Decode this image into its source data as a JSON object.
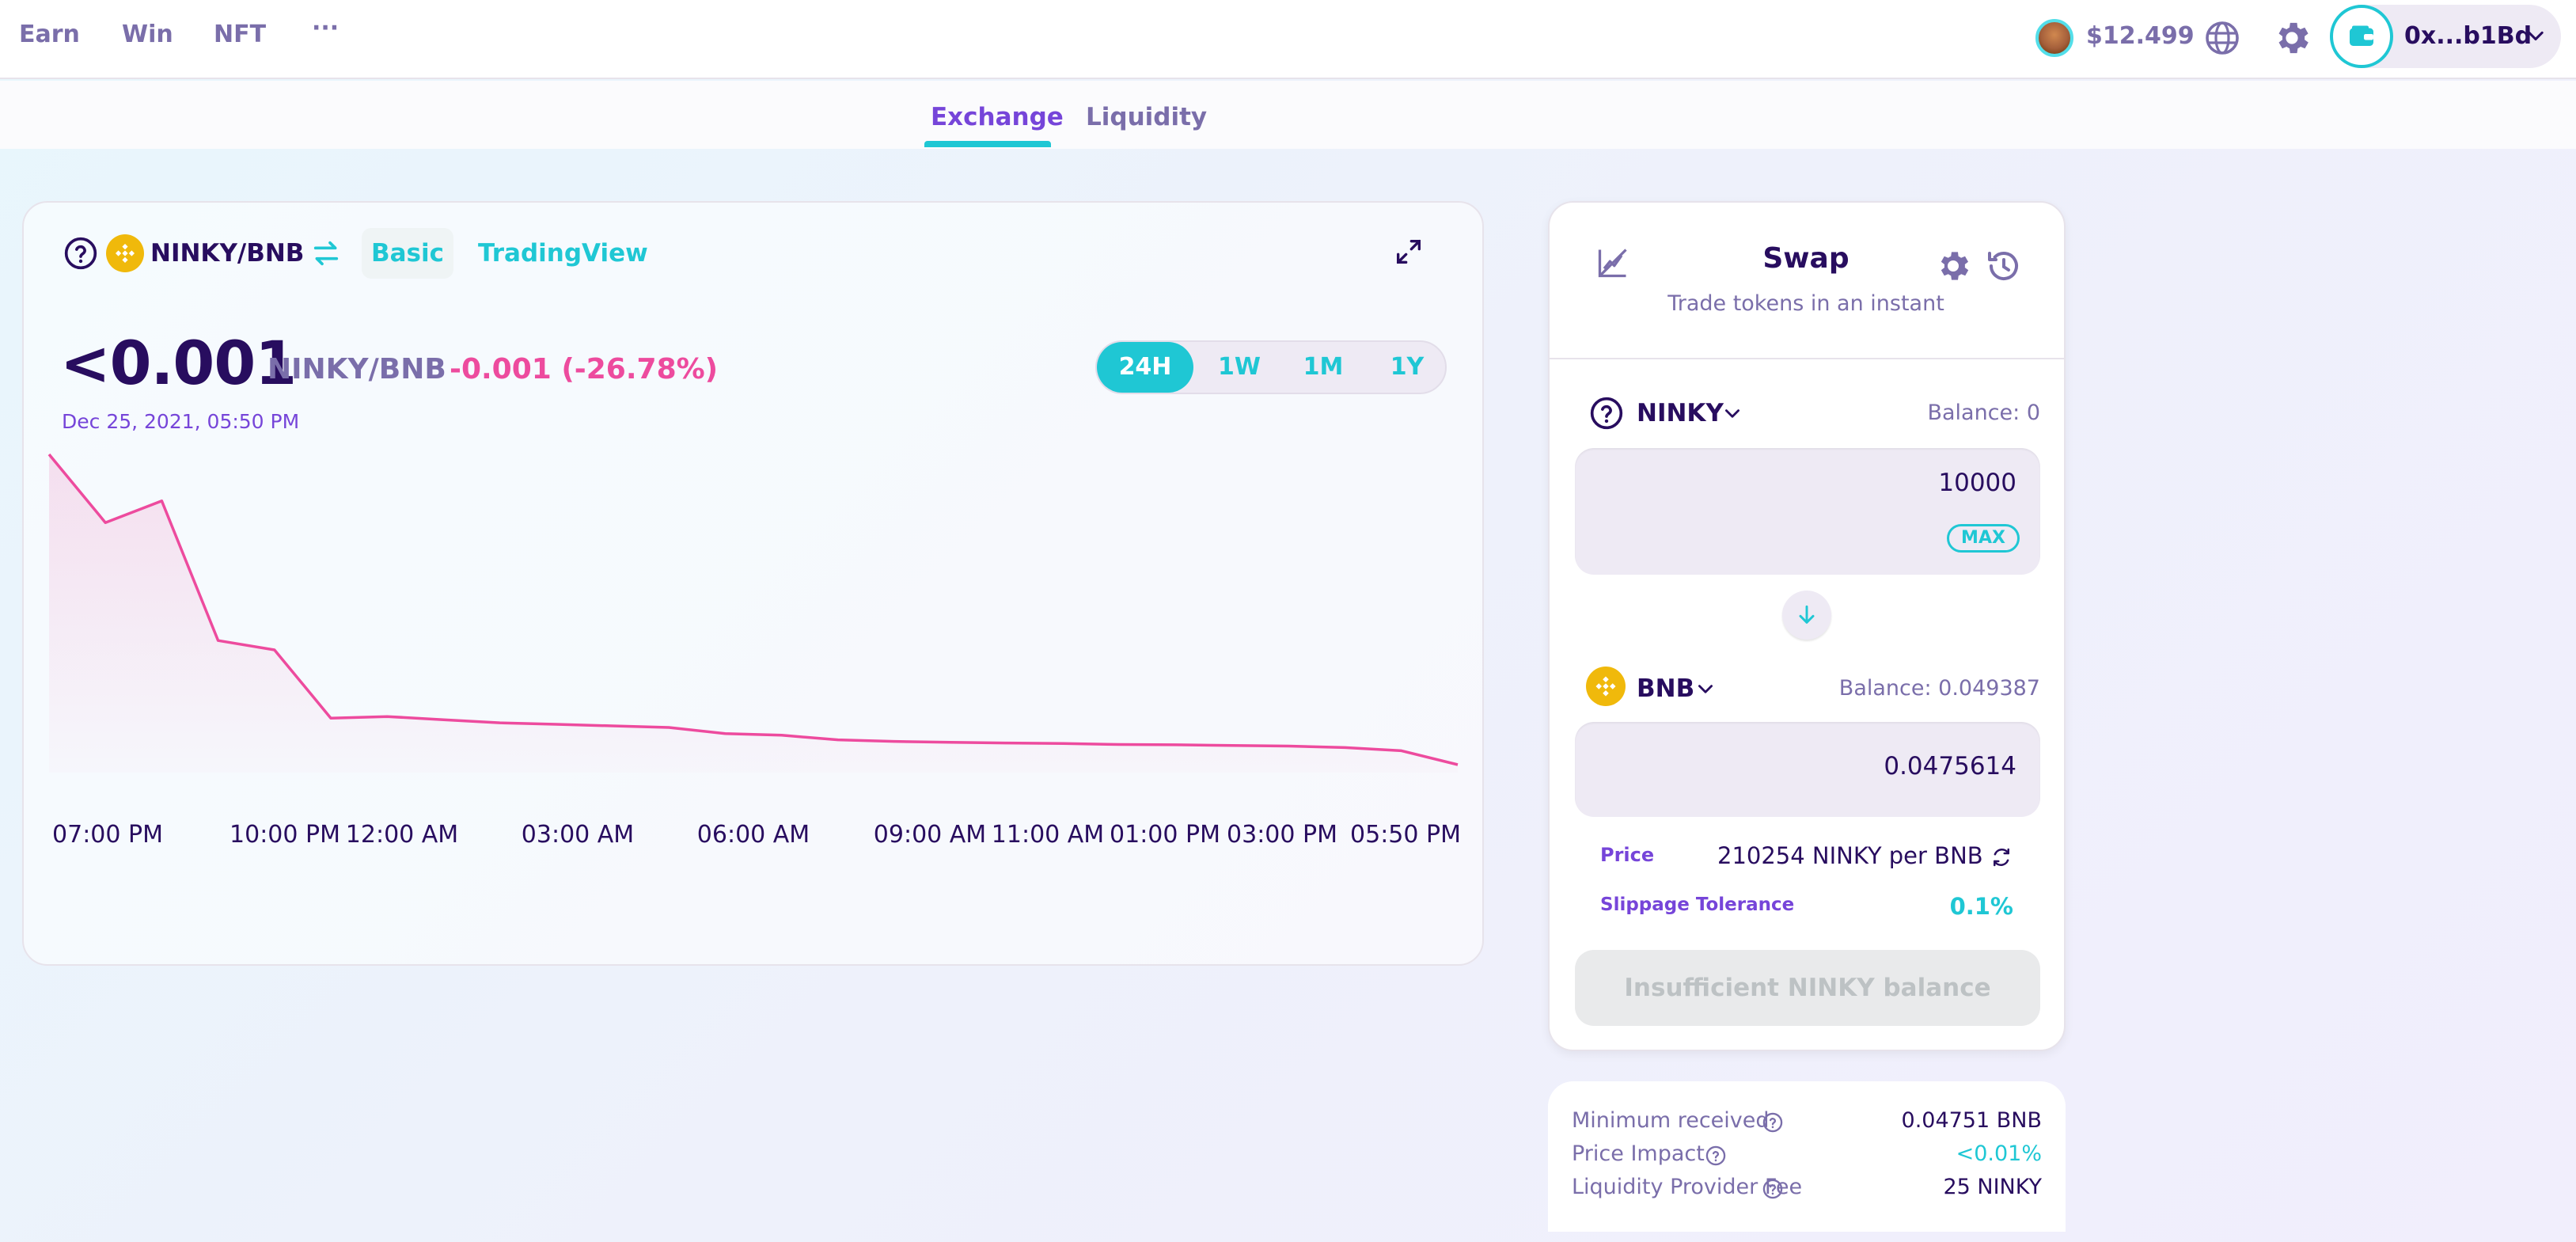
{
  "nav": {
    "links": [
      "Earn",
      "Win",
      "NFT"
    ],
    "more_label": "···",
    "cake_price": "$12.499",
    "wallet_address": "0x...b1Bd"
  },
  "subtabs": {
    "exchange": "Exchange",
    "liquidity": "Liquidity"
  },
  "chart_panel": {
    "pair": "NINKY/BNB",
    "basic_label": "Basic",
    "tradingview_label": "TradingView",
    "price": "<0.001",
    "pair_sub": "NINKY/BNB",
    "change": "-0.001 (-26.78%)",
    "date": "Dec 25, 2021, 05:50 PM",
    "ranges": [
      "24H",
      "1W",
      "1M",
      "1Y"
    ],
    "active_range": "24H",
    "colors": {
      "line": "#ed4b9e",
      "fill": "#ed4b9e"
    }
  },
  "chart_data": {
    "type": "area",
    "title": "",
    "xlabel": "",
    "ylabel": "",
    "x_tick_labels": [
      "07:00 PM",
      "10:00 PM",
      "12:00 AM",
      "03:00 AM",
      "06:00 AM",
      "09:00 AM",
      "11:00 AM",
      "01:00 PM",
      "03:00 PM",
      "05:50 PM"
    ],
    "series": [
      {
        "values": [
          1.0,
          0.78,
          0.85,
          0.4,
          0.37,
          0.15,
          0.155,
          0.145,
          0.135,
          0.13,
          0.125,
          0.12,
          0.1,
          0.095,
          0.08,
          0.075,
          0.072,
          0.07,
          0.068,
          0.065,
          0.064,
          0.062,
          0.06,
          0.055,
          0.045,
          0.0
        ]
      }
    ],
    "grid": false,
    "legend": "none"
  },
  "swap": {
    "title": "Swap",
    "subtitle": "Trade tokens in an instant",
    "from": {
      "token": "NINKY",
      "balance": "Balance: 0",
      "amount": "10000",
      "max_label": "MAX"
    },
    "to": {
      "token": "BNB",
      "balance": "Balance: 0.049387",
      "amount": "0.0475614"
    },
    "price_label": "Price",
    "price_value": "210254 NINKY per BNB",
    "slippage_label": "Slippage Tolerance",
    "slippage_value": "0.1%",
    "button_label": "Insufficient NINKY balance"
  },
  "details": {
    "min_received_label": "Minimum received",
    "min_received_value": "0.04751 BNB",
    "price_impact_label": "Price Impact",
    "price_impact_value": "<0.01%",
    "lp_fee_label": "Liquidity Provider Fee",
    "lp_fee_value": "25 NINKY"
  }
}
